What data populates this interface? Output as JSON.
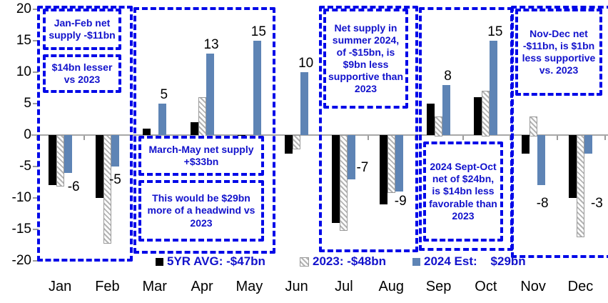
{
  "chart_data": {
    "type": "bar",
    "title": "",
    "categories": [
      "Jan",
      "Feb",
      "Mar",
      "Apr",
      "May",
      "Jun",
      "Jul",
      "Aug",
      "Sep",
      "Oct",
      "Nov",
      "Dec"
    ],
    "series": [
      {
        "name": "5YR AVG: -$47bn",
        "style": "solid-black",
        "color": "#000000",
        "values": [
          -8,
          -10,
          1,
          2,
          -1,
          -3,
          -14,
          -11,
          5,
          6,
          -3,
          -10
        ]
      },
      {
        "name": "2023: -$48bn",
        "style": "hatched",
        "color": "#b3b3b3",
        "values": [
          -8,
          -17,
          -1,
          6,
          -1,
          -2,
          -15,
          -9,
          3,
          7,
          3,
          -16
        ]
      },
      {
        "name": "2024 Est:    $29bn",
        "style": "solid-blue",
        "color": "#5E84B5",
        "values": [
          -6,
          -5,
          5,
          13,
          15,
          10,
          -7,
          -9,
          8,
          15,
          -8,
          -3
        ],
        "labels": [
          "-6",
          "-5",
          "5",
          "13",
          "15",
          "10",
          "-7",
          "-9",
          "8",
          "15",
          "-8",
          "-3"
        ]
      }
    ],
    "yticks": [
      20,
      15,
      10,
      5,
      0,
      -5,
      -10,
      -15,
      -20
    ],
    "ylim": [
      -20,
      20
    ],
    "grid": false,
    "legend_position": "bottom",
    "axis_color": "#a8a8a8",
    "annotation_color": "#0008e8"
  },
  "annotations": {
    "jan_feb_total": "Jan-Feb net supply -$11bn",
    "jan_feb_vs_2023": "$14bn lesser vs 2023",
    "mar_may_total": "March-May net supply +$33bn",
    "mar_may_vs_2023": "This would be $29bn more of a headwind vs 2023",
    "summer": "Net supply in summer 2024, of -$15bn, is $9bn less supportive than 2023",
    "sep_oct": "2024 Sept-Oct net of $24bn, is $14bn less favorable than 2023",
    "nov_dec": "Nov-Dec net -$11bn, is $1bn less supportive vs. 2023"
  }
}
